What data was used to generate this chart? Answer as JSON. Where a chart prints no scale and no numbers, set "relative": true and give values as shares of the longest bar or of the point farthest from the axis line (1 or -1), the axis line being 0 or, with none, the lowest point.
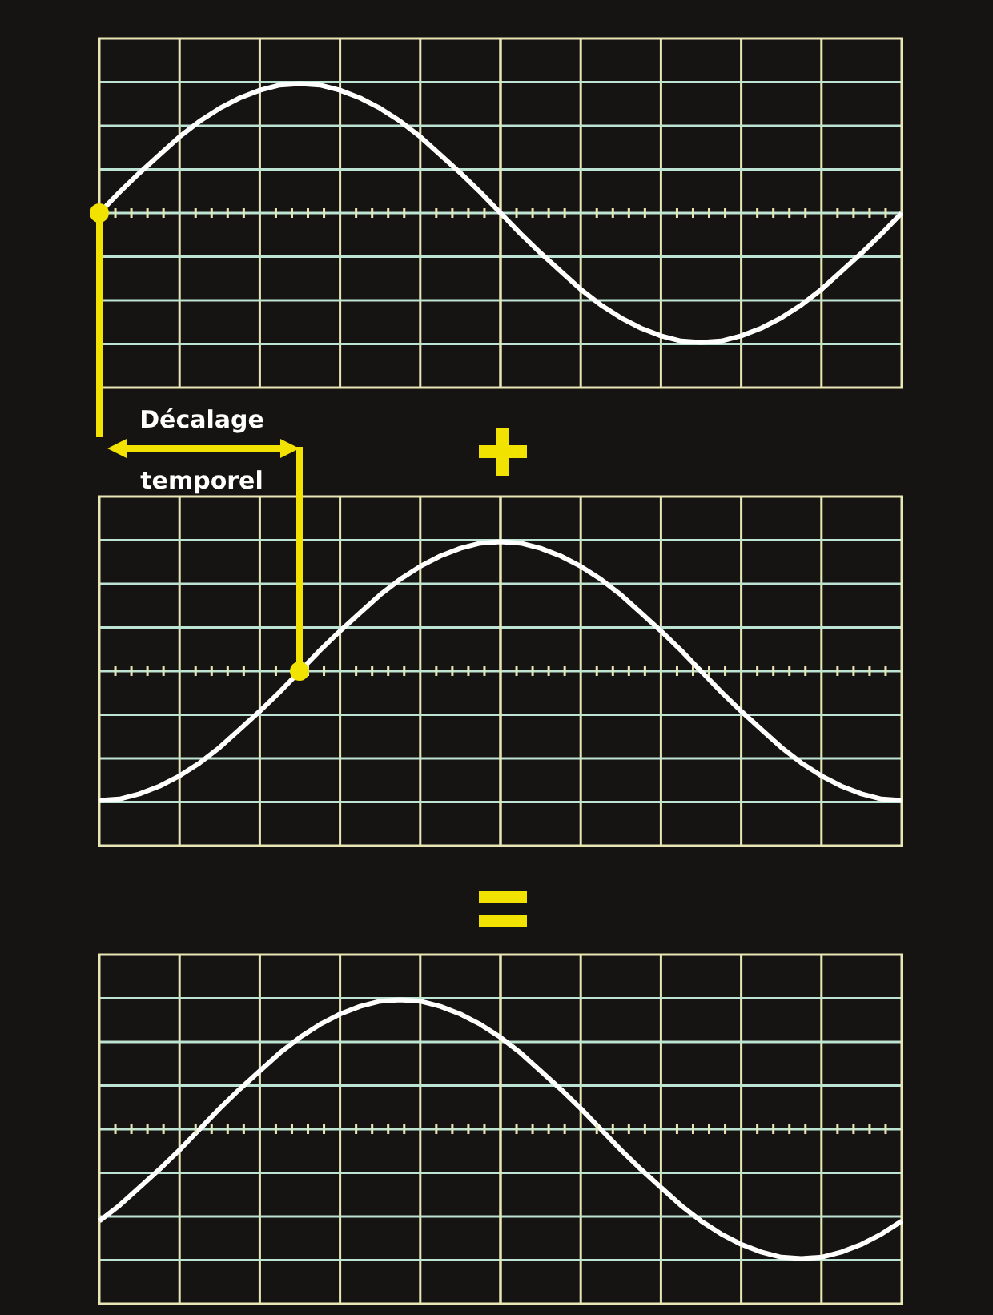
{
  "chart_data": [
    {
      "type": "line",
      "relative": true,
      "marker": "none",
      "grid": true,
      "categories": [
        null,
        null,
        null,
        null,
        null,
        null,
        null,
        null,
        null,
        null,
        null,
        null,
        null,
        null,
        null,
        null,
        null,
        null,
        null,
        null,
        null,
        null,
        null,
        null,
        null,
        null,
        null,
        null,
        null,
        null,
        null,
        null,
        null,
        null,
        null,
        null,
        null,
        null,
        null,
        null,
        null
      ],
      "series": [
        {
          "color": "#ffffff",
          "values": [
            0,
            0.16,
            0.31,
            0.45,
            0.59,
            0.71,
            0.81,
            0.89,
            0.95,
            0.99,
            1,
            0.99,
            0.95,
            0.89,
            0.81,
            0.71,
            0.59,
            0.45,
            0.31,
            0.16,
            0,
            -0.16,
            -0.31,
            -0.45,
            -0.59,
            -0.71,
            -0.81,
            -0.89,
            -0.95,
            -0.99,
            -1,
            -0.99,
            -0.95,
            -0.89,
            -0.81,
            -0.71,
            -0.59,
            -0.45,
            -0.31,
            -0.16,
            0
          ]
        }
      ],
      "annotations": [
        "Décalage temporel"
      ]
    },
    {
      "type": "line",
      "relative": true,
      "marker": "none",
      "grid": true,
      "categories": [
        null,
        null,
        null,
        null,
        null,
        null,
        null,
        null,
        null,
        null,
        null,
        null,
        null,
        null,
        null,
        null,
        null,
        null,
        null,
        null,
        null,
        null,
        null,
        null,
        null,
        null,
        null,
        null,
        null,
        null,
        null,
        null,
        null,
        null,
        null,
        null,
        null,
        null,
        null,
        null,
        null
      ],
      "series": [
        {
          "color": "#ffffff",
          "values": [
            -1,
            -0.99,
            -0.95,
            -0.89,
            -0.81,
            -0.71,
            -0.59,
            -0.45,
            -0.31,
            -0.16,
            0,
            0.16,
            0.31,
            0.45,
            0.59,
            0.71,
            0.81,
            0.89,
            0.95,
            0.99,
            1,
            0.99,
            0.95,
            0.89,
            0.81,
            0.71,
            0.59,
            0.45,
            0.31,
            0.16,
            0,
            -0.16,
            -0.31,
            -0.45,
            -0.59,
            -0.71,
            -0.81,
            -0.89,
            -0.95,
            -0.99,
            -1
          ]
        }
      ]
    },
    {
      "type": "line",
      "relative": true,
      "marker": "none",
      "grid": true,
      "categories": [
        null,
        null,
        null,
        null,
        null,
        null,
        null,
        null,
        null,
        null,
        null,
        null,
        null,
        null,
        null,
        null,
        null,
        null,
        null,
        null,
        null,
        null,
        null,
        null,
        null,
        null,
        null,
        null,
        null,
        null,
        null,
        null,
        null,
        null,
        null,
        null,
        null,
        null,
        null,
        null,
        null
      ],
      "series": [
        {
          "color": "#ffffff",
          "values": [
            -0.71,
            -0.59,
            -0.45,
            -0.31,
            -0.16,
            0,
            0.16,
            0.31,
            0.45,
            0.59,
            0.71,
            0.81,
            0.89,
            0.95,
            0.99,
            1,
            0.99,
            0.95,
            0.89,
            0.81,
            0.71,
            0.59,
            0.45,
            0.31,
            0.16,
            0,
            -0.16,
            -0.31,
            -0.45,
            -0.59,
            -0.71,
            -0.81,
            -0.89,
            -0.95,
            -0.99,
            -1,
            -0.99,
            -0.95,
            -0.89,
            -0.81,
            -0.71
          ]
        }
      ]
    }
  ]
}
